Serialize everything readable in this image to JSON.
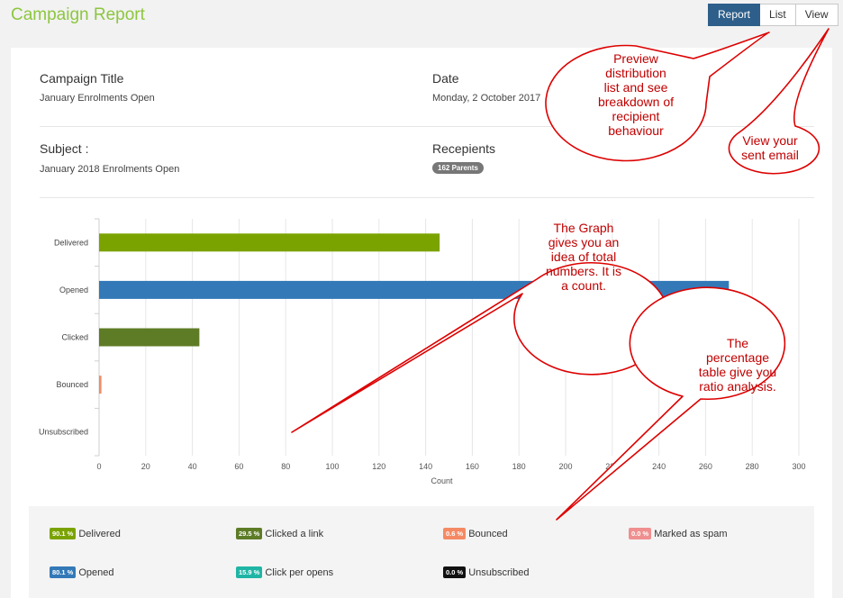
{
  "header": {
    "title": "Campaign Report",
    "buttons": [
      {
        "label": "Report",
        "active": true
      },
      {
        "label": "List",
        "active": false
      },
      {
        "label": "View",
        "active": false
      }
    ]
  },
  "details": {
    "campaign_title_label": "Campaign Title",
    "campaign_title_value": "January Enrolments Open",
    "date_label": "Date",
    "date_value": "Monday, 2 October 2017",
    "subject_label": "Subject :",
    "subject_value": "January 2018 Enrolments Open",
    "recipients_label": "Recepients",
    "recipients_badge": "162 Parents"
  },
  "chart_data": {
    "type": "bar",
    "orientation": "horizontal",
    "categories": [
      "Delivered",
      "Opened",
      "Clicked",
      "Bounced",
      "Unsubscribed"
    ],
    "values": [
      146,
      270,
      43,
      1,
      0
    ],
    "colors": [
      "#7ba300",
      "#3379b8",
      "#5e7c26",
      "#f48a64",
      "#cccccc"
    ],
    "xlabel": "Count",
    "xlim": [
      0,
      300
    ],
    "xticks": [
      0,
      20,
      40,
      60,
      80,
      100,
      120,
      140,
      160,
      180,
      200,
      220,
      240,
      260,
      280,
      300
    ],
    "grid": true
  },
  "stats": [
    {
      "pct": "90.1 %",
      "label": "Delivered",
      "color": "#7ba300"
    },
    {
      "pct": "29.5 %",
      "label": "Clicked a link",
      "color": "#5e7c26"
    },
    {
      "pct": "0.6 %",
      "label": "Bounced",
      "color": "#f48a64"
    },
    {
      "pct": "0.0 %",
      "label": "Marked as spam",
      "color": "#ef8f8f"
    },
    {
      "pct": "80.1 %",
      "label": "Opened",
      "color": "#3379b8"
    },
    {
      "pct": "15.9 %",
      "label": "Click per opens",
      "color": "#1fb5a5"
    },
    {
      "pct": "0.0 %",
      "label": "Unsubscribed",
      "color": "#111111"
    }
  ],
  "annotations": {
    "preview": [
      "Preview",
      "distribution",
      "list and see",
      "breakdown of",
      "recipient",
      "behaviour"
    ],
    "view": [
      "View your",
      "sent email"
    ],
    "graph": [
      "The Graph",
      "gives you an",
      "idea of total",
      "numbers. It is",
      "a count."
    ],
    "percentage": [
      "The",
      "percentage",
      "table give you",
      "ratio analysis."
    ],
    "accent_color": "#c00000"
  }
}
